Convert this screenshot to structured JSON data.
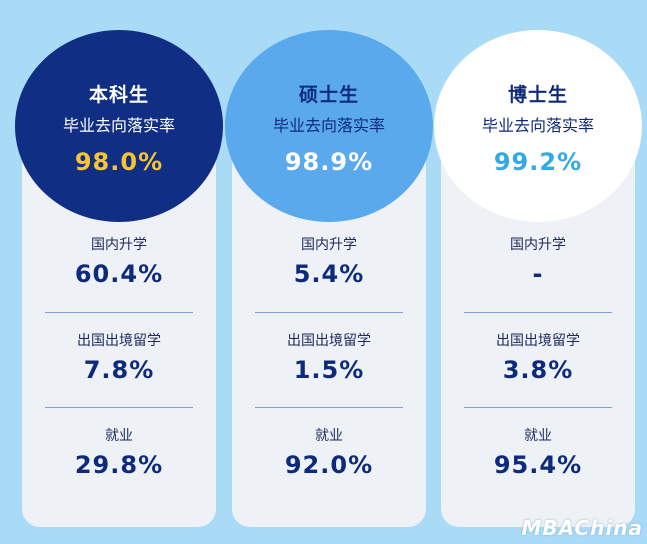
{
  "columns": [
    {
      "title": "本科生",
      "subtitle": "毕业去向落实率",
      "rate": "98.0%",
      "stats": [
        {
          "label": "国内升学",
          "value": "60.4%"
        },
        {
          "label": "出国出境留学",
          "value": "7.8%"
        },
        {
          "label": "就业",
          "value": "29.8%"
        }
      ]
    },
    {
      "title": "硕士生",
      "subtitle": "毕业去向落实率",
      "rate": "98.9%",
      "stats": [
        {
          "label": "国内升学",
          "value": "5.4%"
        },
        {
          "label": "出国出境留学",
          "value": "1.5%"
        },
        {
          "label": "就业",
          "value": "92.0%"
        }
      ]
    },
    {
      "title": "博士生",
      "subtitle": "毕业去向落实率",
      "rate": "99.2%",
      "stats": [
        {
          "label": "国内升学",
          "value": "-"
        },
        {
          "label": "出国出境留学",
          "value": "3.8%"
        },
        {
          "label": "就业",
          "value": "95.4%"
        }
      ]
    }
  ],
  "watermark": "MBAChina",
  "colors": {
    "background": "#a9dbf7",
    "navy": "#0f2e84",
    "mid_blue": "#5aa9ec",
    "highlight_yellow": "#f7c533",
    "cyan_text": "#33a9e6"
  }
}
